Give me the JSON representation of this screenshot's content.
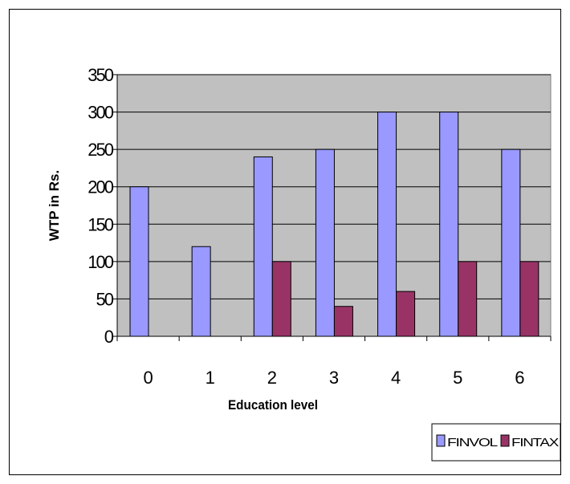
{
  "chart_data": {
    "type": "bar",
    "title": "",
    "xlabel": "Education level",
    "ylabel": "WTP in Rs.",
    "categories": [
      "0",
      "1",
      "2",
      "3",
      "4",
      "5",
      "6"
    ],
    "series": [
      {
        "name": "FINVOL",
        "values": [
          200,
          120,
          240,
          250,
          300,
          300,
          250
        ],
        "color": "#9999ff"
      },
      {
        "name": "FINTAX",
        "values": [
          0,
          0,
          100,
          40,
          60,
          100,
          100
        ],
        "color": "#993366"
      }
    ],
    "ylim": [
      0,
      350
    ],
    "yticks": [
      "0",
      "50",
      "100",
      "150",
      "200",
      "250",
      "300",
      "350"
    ],
    "grid": true,
    "plot_background": "#c0c0c0",
    "legend_position": "bottom-right"
  }
}
